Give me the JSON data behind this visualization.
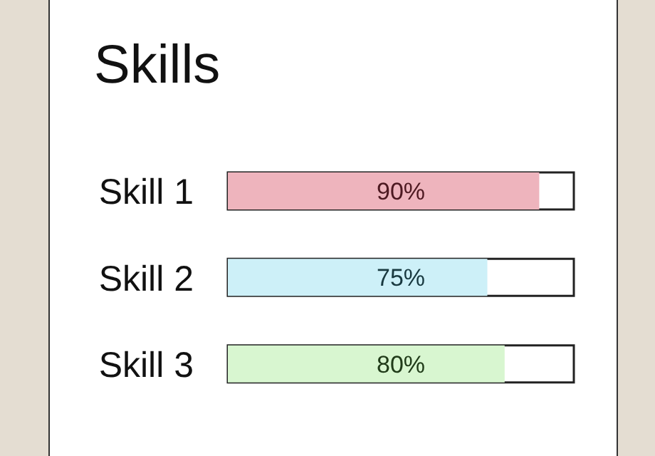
{
  "chart_data": {
    "type": "bar",
    "orientation": "horizontal",
    "title": "Skills",
    "categories": [
      "Skill 1",
      "Skill 2",
      "Skill 3"
    ],
    "values": [
      90,
      75,
      80
    ],
    "colors": [
      "#eeb4bd",
      "#cdf0f8",
      "#d8f6d0"
    ],
    "value_labels": [
      "90%",
      "75%",
      "80%"
    ],
    "xlim": [
      0,
      100
    ],
    "tick_labels": "y",
    "grid": false,
    "legend": false
  }
}
